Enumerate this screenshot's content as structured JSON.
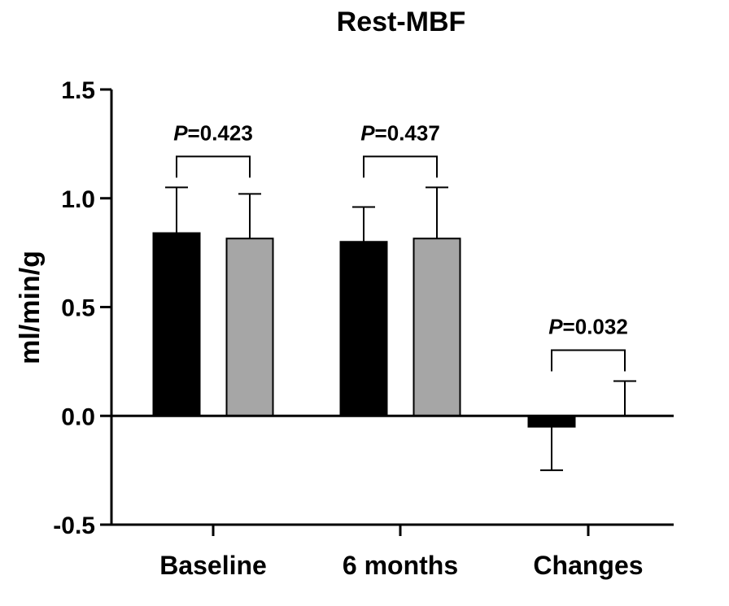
{
  "chart_data": {
    "type": "bar",
    "title": "Rest-MBF",
    "ylabel": "ml/min/g",
    "xlabel": "",
    "ylim": [
      -0.5,
      1.5
    ],
    "yticks": [
      -0.5,
      0.0,
      0.5,
      1.0,
      1.5
    ],
    "ytick_labels": [
      "-0.5",
      "0.0",
      "0.5",
      "1.0",
      "1.5"
    ],
    "categories": [
      "Baseline",
      "6 months",
      "Changes"
    ],
    "series": [
      {
        "color": "#000000",
        "values": [
          0.84,
          0.8,
          -0.05
        ],
        "error": [
          0.21,
          0.16,
          0.2
        ]
      },
      {
        "color": "#a6a6a6",
        "values": [
          0.815,
          0.815,
          0.0
        ],
        "error": [
          0.205,
          0.235,
          0.16
        ]
      }
    ],
    "annotations": [
      {
        "category": 0,
        "label_prefix": "P",
        "label_value": "=0.423"
      },
      {
        "category": 1,
        "label_prefix": "P",
        "label_value": "=0.437"
      },
      {
        "category": 2,
        "label_prefix": "P",
        "label_value": "=0.032"
      }
    ]
  }
}
